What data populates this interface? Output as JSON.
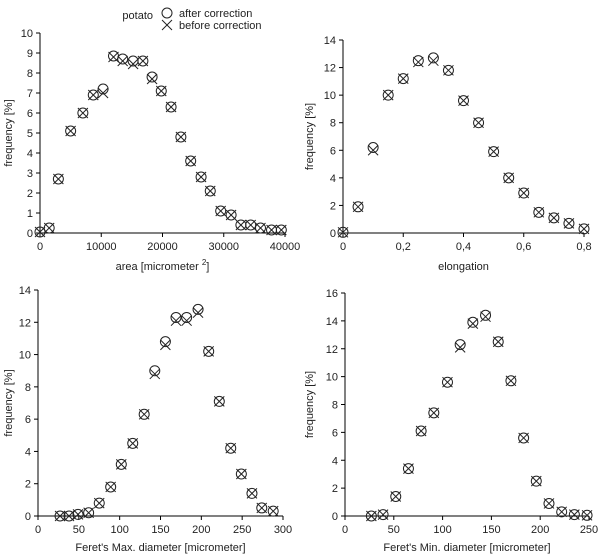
{
  "legend": {
    "title": "potato",
    "items": [
      {
        "name": "after correction",
        "marker": "circle"
      },
      {
        "name": "before correction",
        "marker": "x"
      }
    ]
  },
  "chart_data": [
    {
      "type": "scatter",
      "xlabel": "area [micrometer",
      "xlabel_sup": "2",
      "xlabel_end": "]",
      "ylabel": "frequency [%]",
      "xlim": [
        0,
        40000
      ],
      "ylim": [
        0,
        10
      ],
      "xticks": [
        0,
        10000,
        20000,
        30000,
        40000
      ],
      "xtick_labels": [
        "0",
        "10000",
        "20000",
        "30000",
        "40000"
      ],
      "yticks": [
        0,
        1,
        2,
        3,
        4,
        5,
        6,
        7,
        8,
        9,
        10
      ],
      "ytick_labels": [
        "0",
        "1",
        "2",
        "3",
        "4",
        "5",
        "6",
        "7",
        "8",
        "9",
        "10"
      ],
      "series": [
        {
          "name": "after correction",
          "marker": "circle",
          "x": [
            0,
            1500,
            3000,
            5000,
            7000,
            8700,
            10300,
            12000,
            13500,
            15200,
            16800,
            18300,
            19800,
            21400,
            23000,
            24600,
            26300,
            27800,
            29500,
            31200,
            32800,
            34400,
            36000,
            37800,
            39400
          ],
          "y": [
            0.05,
            0.25,
            2.7,
            5.1,
            6.0,
            6.9,
            7.2,
            8.85,
            8.7,
            8.6,
            8.6,
            7.8,
            7.1,
            6.3,
            4.8,
            3.6,
            2.8,
            2.1,
            1.1,
            0.9,
            0.4,
            0.4,
            0.25,
            0.15,
            0.15
          ]
        },
        {
          "name": "before correction",
          "marker": "x",
          "x": [
            0,
            1500,
            3000,
            5000,
            7000,
            8700,
            10300,
            12000,
            13500,
            15200,
            16800,
            18300,
            19800,
            21400,
            23000,
            24600,
            26300,
            27800,
            29500,
            31200,
            32800,
            34400,
            36000,
            37800,
            39400
          ],
          "y": [
            0.05,
            0.25,
            2.7,
            5.1,
            6.0,
            6.9,
            7.0,
            8.8,
            8.6,
            8.45,
            8.6,
            7.7,
            7.1,
            6.3,
            4.8,
            3.6,
            2.8,
            2.1,
            1.1,
            0.9,
            0.4,
            0.4,
            0.25,
            0.15,
            0.15
          ]
        }
      ]
    },
    {
      "type": "scatter",
      "xlabel": "elongation",
      "ylabel": "frequency [%]",
      "xlim": [
        0,
        0.8
      ],
      "ylim": [
        0,
        14
      ],
      "xticks": [
        0,
        0.2,
        0.4,
        0.6,
        0.8
      ],
      "xtick_labels": [
        "0",
        "0,2",
        "0,4",
        "0,6",
        "0,8"
      ],
      "yticks": [
        0,
        2,
        4,
        6,
        8,
        10,
        12,
        14
      ],
      "ytick_labels": [
        "0",
        "2",
        "4",
        "6",
        "8",
        "10",
        "12",
        "14"
      ],
      "series": [
        {
          "name": "after correction",
          "marker": "circle",
          "x": [
            0,
            0.05,
            0.1,
            0.15,
            0.2,
            0.25,
            0.3,
            0.35,
            0.4,
            0.45,
            0.5,
            0.55,
            0.6,
            0.65,
            0.7,
            0.75,
            0.8
          ],
          "y": [
            0.05,
            1.9,
            6.2,
            10.0,
            11.2,
            12.5,
            12.7,
            11.8,
            9.6,
            8.0,
            5.9,
            4.0,
            2.9,
            1.5,
            1.1,
            0.7,
            0.3
          ]
        },
        {
          "name": "before correction",
          "marker": "x",
          "x": [
            0,
            0.05,
            0.1,
            0.15,
            0.2,
            0.25,
            0.3,
            0.35,
            0.4,
            0.45,
            0.5,
            0.55,
            0.6,
            0.65,
            0.7,
            0.75,
            0.8
          ],
          "y": [
            0.05,
            1.9,
            6.0,
            10.0,
            11.2,
            12.4,
            12.5,
            11.8,
            9.6,
            8.0,
            5.9,
            4.0,
            2.9,
            1.5,
            1.1,
            0.7,
            0.3
          ]
        }
      ]
    },
    {
      "type": "scatter",
      "xlabel": "Feret's Max. diameter [micrometer]",
      "ylabel": "frequency [%]",
      "xlim": [
        0,
        300
      ],
      "ylim": [
        0,
        14
      ],
      "xticks": [
        0,
        50,
        100,
        150,
        200,
        250,
        300
      ],
      "xtick_labels": [
        "0",
        "50",
        "100",
        "150",
        "200",
        "250",
        "300"
      ],
      "yticks": [
        0,
        2,
        4,
        6,
        8,
        10,
        12,
        14
      ],
      "ytick_labels": [
        "0",
        "2",
        "4",
        "6",
        "8",
        "10",
        "12",
        "14"
      ],
      "series": [
        {
          "name": "after correction",
          "marker": "circle",
          "x": [
            27,
            38,
            49,
            62,
            75,
            89,
            102,
            116,
            130,
            143,
            156,
            169,
            182,
            196,
            209,
            222,
            236,
            249,
            262,
            274,
            288
          ],
          "y": [
            0.0,
            0.0,
            0.1,
            0.2,
            0.8,
            1.8,
            3.2,
            4.5,
            6.3,
            9.0,
            10.8,
            12.3,
            12.3,
            12.8,
            10.2,
            7.1,
            4.2,
            2.6,
            1.4,
            0.5,
            0.3
          ]
        },
        {
          "name": "before correction",
          "marker": "x",
          "x": [
            27,
            38,
            49,
            62,
            75,
            89,
            102,
            116,
            130,
            143,
            156,
            169,
            182,
            196,
            209,
            222,
            236,
            249,
            262,
            274,
            288
          ],
          "y": [
            0.0,
            0.0,
            0.1,
            0.2,
            0.8,
            1.8,
            3.2,
            4.5,
            6.3,
            8.8,
            10.6,
            12.1,
            12.1,
            12.6,
            10.2,
            7.1,
            4.2,
            2.6,
            1.4,
            0.5,
            0.3
          ]
        }
      ]
    },
    {
      "type": "scatter",
      "xlabel": "Feret's Min. diameter [micrometer]",
      "ylabel": "frequency [%]",
      "xlim": [
        0,
        250
      ],
      "ylim": [
        0,
        16
      ],
      "xticks": [
        0,
        50,
        100,
        150,
        200,
        250
      ],
      "xtick_labels": [
        "0",
        "50",
        "100",
        "150",
        "200",
        "250"
      ],
      "yticks": [
        0,
        2,
        4,
        6,
        8,
        10,
        12,
        14,
        16
      ],
      "ytick_labels": [
        "0",
        "2",
        "4",
        "6",
        "8",
        "10",
        "12",
        "14",
        "16"
      ],
      "series": [
        {
          "name": "after correction",
          "marker": "circle",
          "x": [
            27,
            39,
            52,
            65,
            78,
            91,
            105,
            118,
            131,
            144,
            157,
            170,
            183,
            196,
            209,
            222,
            235,
            248
          ],
          "y": [
            0.0,
            0.1,
            1.4,
            3.4,
            6.1,
            7.4,
            9.6,
            12.3,
            13.9,
            14.4,
            12.5,
            9.7,
            5.6,
            2.5,
            0.9,
            0.3,
            0.1,
            0.05
          ]
        },
        {
          "name": "before correction",
          "marker": "x",
          "x": [
            27,
            39,
            52,
            65,
            78,
            91,
            105,
            118,
            131,
            144,
            157,
            170,
            183,
            196,
            209,
            222,
            235,
            248
          ],
          "y": [
            0.0,
            0.1,
            1.4,
            3.4,
            6.1,
            7.4,
            9.6,
            12.1,
            13.8,
            14.3,
            12.5,
            9.7,
            5.6,
            2.5,
            0.9,
            0.3,
            0.1,
            0.05
          ]
        }
      ]
    }
  ]
}
